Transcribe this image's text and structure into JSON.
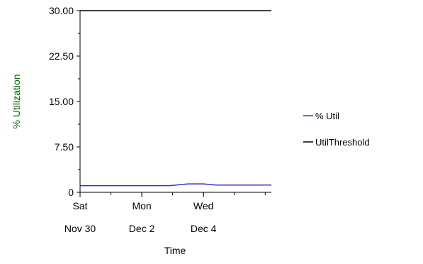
{
  "chart_data": {
    "type": "line",
    "ylabel": "% Utilization",
    "xlabel": "Time",
    "ylim": [
      0,
      30
    ],
    "y_ticks": [
      {
        "value": 0,
        "label": "0"
      },
      {
        "value": 7.5,
        "label": "7.50"
      },
      {
        "value": 15,
        "label": "15.00"
      },
      {
        "value": 22.5,
        "label": "22.50"
      },
      {
        "value": 30,
        "label": "30.00"
      }
    ],
    "x_range_days": [
      0,
      6.2
    ],
    "x_ticks": [
      {
        "day": 0,
        "line1": "Sat",
        "line2": "Nov 30"
      },
      {
        "day": 2,
        "line1": "Mon",
        "line2": "Dec 2"
      },
      {
        "day": 4,
        "line1": "Wed",
        "line2": "Dec 4"
      }
    ],
    "legend_position": "right",
    "series": [
      {
        "name": "% Util",
        "color": "#3333cc",
        "x": [
          0,
          2.9,
          3.5,
          4.0,
          4.4,
          5.0,
          6.2
        ],
        "values": [
          1.1,
          1.1,
          1.4,
          1.4,
          1.2,
          1.2,
          1.2
        ]
      },
      {
        "name": "UtilThreshold",
        "color": "#000000",
        "x": [
          0,
          6.2
        ],
        "values": [
          30,
          30
        ]
      }
    ]
  }
}
